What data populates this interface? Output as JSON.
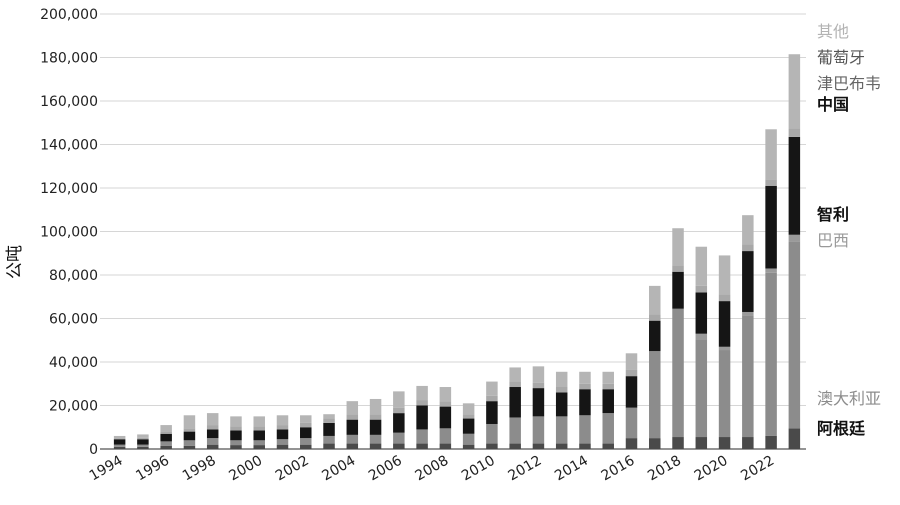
{
  "chart_data": {
    "type": "bar",
    "stacked": true,
    "ylabel": "公吨",
    "xlabel": "",
    "title": "",
    "ylim": [
      0,
      200000
    ],
    "yticks": [
      "0",
      "20,000",
      "40,000",
      "60,000",
      "80,000",
      "100,000",
      "120,000",
      "140,000",
      "160,000",
      "180,000",
      "200,000"
    ],
    "xticks": [
      "1994",
      "1996",
      "1998",
      "2000",
      "2002",
      "2004",
      "2006",
      "2008",
      "2010",
      "2012",
      "2014",
      "2016",
      "2018",
      "2020",
      "2022"
    ],
    "grid": "horizontal",
    "legend_position": "right",
    "categories": [
      "1994",
      "1995",
      "1996",
      "1997",
      "1998",
      "1999",
      "2000",
      "2001",
      "2002",
      "2003",
      "2004",
      "2005",
      "2006",
      "2007",
      "2008",
      "2009",
      "2010",
      "2011",
      "2012",
      "2013",
      "2014",
      "2015",
      "2016",
      "2017",
      "2018",
      "2019",
      "2020",
      "2021",
      "2022",
      "2023"
    ],
    "series": [
      {
        "name": "阿根廷",
        "color": "#4a4a4a",
        "values": [
          1000,
          1000,
          1500,
          1500,
          2000,
          1800,
          1800,
          2000,
          2000,
          2500,
          2500,
          2500,
          2500,
          2500,
          2500,
          2000,
          2500,
          2500,
          2500,
          2500,
          2500,
          2500,
          5000,
          5000,
          5500,
          5500,
          5500,
          5500,
          6000,
          9500
        ]
      },
      {
        "name": "澳大利亚",
        "color": "#8c8c8c",
        "values": [
          1000,
          1000,
          2000,
          2500,
          3000,
          2200,
          2200,
          2500,
          3000,
          3500,
          4000,
          4000,
          5000,
          6500,
          7000,
          5000,
          9000,
          12000,
          12500,
          12500,
          13000,
          14000,
          14000,
          40000,
          59000,
          45000,
          40000,
          56000,
          75000,
          86000
        ]
      },
      {
        "name": "巴西",
        "color": "#9a9a9a",
        "values": [
          0,
          0,
          0,
          0,
          0,
          0,
          0,
          0,
          0,
          0,
          0,
          0,
          0,
          0,
          0,
          0,
          0,
          0,
          0,
          0,
          0,
          0,
          0,
          0,
          0,
          2500,
          1500,
          1500,
          2000,
          3000
        ]
      },
      {
        "name": "智利",
        "color": "#151515",
        "values": [
          2500,
          2500,
          3500,
          4000,
          4000,
          4500,
          4500,
          4500,
          5000,
          6000,
          7000,
          7000,
          9000,
          11000,
          10000,
          7000,
          10500,
          14000,
          13000,
          11000,
          12000,
          11000,
          14500,
          14000,
          17000,
          19000,
          21000,
          28000,
          38000,
          45000
        ]
      },
      {
        "name": "中国",
        "color": "#555555",
        "values": [
          0,
          0,
          0,
          0,
          0,
          0,
          0,
          0,
          0,
          0,
          0,
          0,
          0,
          0,
          0,
          0,
          0,
          0,
          0,
          0,
          0,
          0,
          0,
          0,
          0,
          0,
          0,
          0,
          0,
          0
        ]
      },
      {
        "name": "津巴布韦",
        "color": "#a8a8a8",
        "values": [
          500,
          700,
          1000,
          1500,
          2000,
          2000,
          2000,
          2000,
          2000,
          2000,
          2500,
          2500,
          2500,
          2500,
          2500,
          2000,
          2500,
          2500,
          2500,
          2500,
          2500,
          2500,
          3000,
          3000,
          3000,
          3000,
          3000,
          3000,
          3000,
          4000
        ]
      },
      {
        "name": "葡萄牙",
        "color": "#a3a3a3",
        "values": [
          0,
          0,
          0,
          0,
          0,
          0,
          0,
          0,
          0,
          0,
          0,
          0,
          0,
          0,
          0,
          0,
          0,
          0,
          0,
          0,
          0,
          0,
          0,
          0,
          0,
          0,
          0,
          0,
          0,
          0
        ]
      },
      {
        "name": "其他",
        "color": "#b5b5b5",
        "values": [
          1000,
          1500,
          3000,
          6000,
          5500,
          4500,
          4500,
          4500,
          3500,
          2000,
          6000,
          7000,
          7500,
          6500,
          6500,
          5000,
          6500,
          6500,
          7500,
          7000,
          5500,
          5500,
          7500,
          13000,
          17000,
          18000,
          18000,
          13500,
          23000,
          34000
        ]
      }
    ],
    "legend_order_top_to_bottom": [
      "其他",
      "葡萄牙",
      "津巴布韦",
      "中国",
      "智利",
      "巴西",
      "澳大利亚",
      "阿根廷"
    ],
    "legend_colors": {
      "其他": "#b3b3b3",
      "葡萄牙": "#555555",
      "津巴布韦": "#666666",
      "中国": "#111111",
      "智利": "#111111",
      "巴西": "#999999",
      "澳大利亚": "#8c8c8c",
      "阿根廷": "#111111"
    }
  }
}
